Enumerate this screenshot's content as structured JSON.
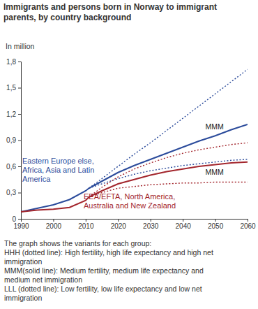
{
  "chart_data": {
    "type": "line",
    "title": "Immigrants and persons born in Norway to immigrant parents, by country background",
    "y_label": "In million",
    "x": [
      1990,
      1995,
      2000,
      2005,
      2010,
      2011,
      2015,
      2020,
      2025,
      2030,
      2035,
      2040,
      2045,
      2050,
      2055,
      2060
    ],
    "xlim": [
      1990,
      2060
    ],
    "xticks": [
      1990,
      2000,
      2010,
      2020,
      2030,
      2040,
      2050,
      2060
    ],
    "ylim": [
      0,
      1.8
    ],
    "yticks": [
      0,
      {
        "value": 0.3,
        "label": "0,3"
      },
      {
        "value": 0.6,
        "label": "0,6"
      },
      {
        "value": 0.9,
        "label": "0,9"
      },
      {
        "value": 1.2,
        "label": "1,2"
      },
      {
        "value": 1.5,
        "label": "1,5"
      },
      {
        "value": 1.8,
        "label": "1,8"
      }
    ],
    "grid": false,
    "series": [
      {
        "name": "Eastern Europe else, Africa, Asia and Latin America",
        "label": "MMM",
        "color": "#2b4b9b",
        "line_style": "solid",
        "values": [
          0.08,
          0.12,
          0.16,
          0.22,
          0.32,
          0.35,
          0.43,
          0.53,
          0.61,
          0.68,
          0.75,
          0.82,
          0.89,
          0.95,
          1.02,
          1.08
        ]
      },
      {
        "color": "#2b4b9b",
        "line_style": "dotted",
        "values": [
          null,
          null,
          null,
          null,
          null,
          0.35,
          0.46,
          0.6,
          0.74,
          0.87,
          1.01,
          1.15,
          1.29,
          1.43,
          1.57,
          1.71
        ]
      },
      {
        "color": "#2b4b9b",
        "line_style": "dotted",
        "values": [
          null,
          null,
          null,
          null,
          null,
          0.35,
          0.4,
          0.46,
          0.51,
          0.55,
          0.58,
          0.61,
          0.63,
          0.65,
          0.67,
          0.68
        ]
      },
      {
        "name": "EEA/EFTA, North America, Australia and New Zealand",
        "label": "MMM",
        "color": "#a3262d",
        "line_style": "solid",
        "values": [
          0.08,
          0.1,
          0.11,
          0.13,
          0.21,
          0.25,
          0.32,
          0.4,
          0.45,
          0.5,
          0.54,
          0.57,
          0.6,
          0.62,
          0.64,
          0.65
        ]
      },
      {
        "color": "#a3262d",
        "line_style": "dotted",
        "values": [
          null,
          null,
          null,
          null,
          null,
          0.25,
          0.36,
          0.48,
          0.57,
          0.64,
          0.7,
          0.75,
          0.79,
          0.82,
          0.85,
          0.87
        ]
      },
      {
        "color": "#a3262d",
        "line_style": "dotted",
        "values": [
          null,
          null,
          null,
          null,
          null,
          0.25,
          0.3,
          0.35,
          0.37,
          0.39,
          0.4,
          0.41,
          0.41,
          0.42,
          0.42,
          0.42
        ]
      }
    ],
    "notes": [
      "The graph shows the variants for each group:",
      "HHH (dotted line): High fertility, high life expectancy and high net",
      "immigration",
      "MMM(solid line): Medium fertility, medium life expectancy and",
      "medium net immigration",
      "LLL (dotted line): Low fertility, low life expectancy and low net",
      "immigration"
    ]
  }
}
